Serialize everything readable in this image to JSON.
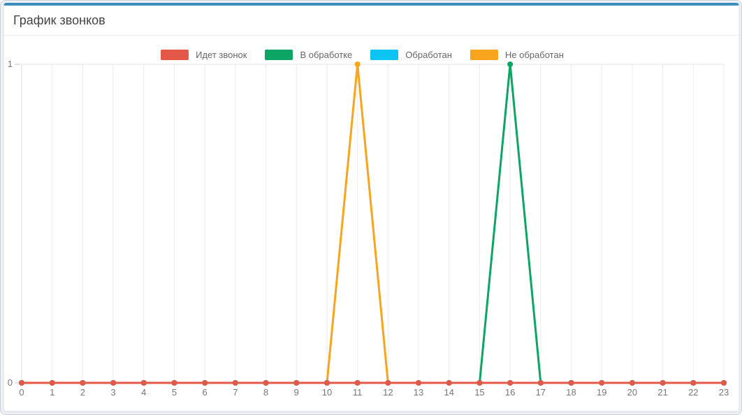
{
  "card": {
    "title": "График звонков",
    "accent_color": "#3c8dbc"
  },
  "chart_data": {
    "type": "line",
    "title": "График звонков",
    "xlabel": "",
    "ylabel": "",
    "x_labels": [
      "0",
      "1",
      "2",
      "3",
      "4",
      "5",
      "6",
      "7",
      "8",
      "9",
      "10",
      "11",
      "12",
      "13",
      "14",
      "15",
      "16",
      "17",
      "18",
      "19",
      "20",
      "21",
      "22",
      "23"
    ],
    "ylim": [
      0,
      1
    ],
    "yticks": [
      0,
      1
    ],
    "grid": true,
    "legend_position": "top-center",
    "point_markers": true,
    "series": [
      {
        "name": "Идет звонок",
        "color": "#e4584a",
        "values": [
          0,
          0,
          0,
          0,
          0,
          0,
          0,
          0,
          0,
          0,
          0,
          0,
          0,
          0,
          0,
          0,
          0,
          0,
          0,
          0,
          0,
          0,
          0,
          0
        ]
      },
      {
        "name": "В обработке",
        "color": "#0ca564",
        "values": [
          0,
          0,
          0,
          0,
          0,
          0,
          0,
          0,
          0,
          0,
          0,
          0,
          0,
          0,
          0,
          0,
          1,
          0,
          0,
          0,
          0,
          0,
          0,
          0
        ]
      },
      {
        "name": "Обработан",
        "color": "#0cc3f2",
        "values": [
          0,
          0,
          0,
          0,
          0,
          0,
          0,
          0,
          0,
          0,
          0,
          0,
          0,
          0,
          0,
          0,
          0,
          0,
          0,
          0,
          0,
          0,
          0,
          0
        ]
      },
      {
        "name": "Не обработан",
        "color": "#f8a41d",
        "values": [
          0,
          0,
          0,
          0,
          0,
          0,
          0,
          0,
          0,
          0,
          0,
          1,
          0,
          0,
          0,
          0,
          0,
          0,
          0,
          0,
          0,
          0,
          0,
          0
        ]
      }
    ]
  }
}
